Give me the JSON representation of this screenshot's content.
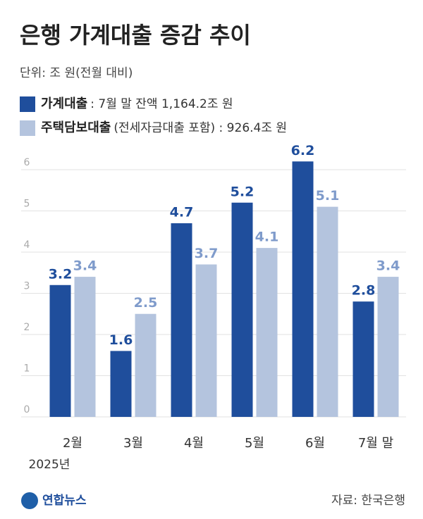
{
  "chart_data": {
    "type": "bar",
    "title": "은행 가계대출 증감 추이",
    "subtitle": "단위: 조 원(전월 대비)",
    "categories": [
      "2월",
      "3월",
      "4월",
      "5월",
      "6월",
      "7월 말"
    ],
    "x_annotation": "2025년",
    "series": [
      {
        "name": "가계대출",
        "note": ": 7월 말 잔액 1,164.2조 원",
        "color": "#1f4e9c",
        "label_color": "#1f4e9c",
        "values": [
          3.2,
          1.6,
          4.7,
          5.2,
          6.2,
          2.8
        ]
      },
      {
        "name": "주택담보대출",
        "note": "(전세자금대출 포함) : 926.4조 원",
        "color": "#b4c4de",
        "label_color": "#7f9bcb",
        "values": [
          3.4,
          2.5,
          3.7,
          4.1,
          5.1,
          3.4
        ]
      }
    ],
    "ylim": [
      0,
      6.5
    ],
    "yticks": [
      0,
      1,
      2,
      3,
      4,
      5,
      6
    ],
    "grid": true,
    "source": "자료: 한국은행",
    "logo": "연합뉴스"
  }
}
